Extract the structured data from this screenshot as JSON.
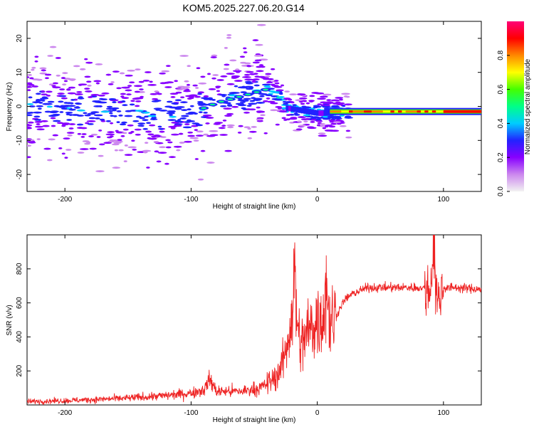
{
  "title": "KOM5.2025.227.06.20.G14",
  "chart_data": [
    {
      "type": "heatmap",
      "xlabel": "Height of straight line (km)",
      "ylabel": "Frequency (Hz)",
      "xlim": [
        -230,
        130
      ],
      "ylim": [
        -25,
        25
      ],
      "xticks": [
        -200,
        -100,
        0,
        100
      ],
      "yticks": [
        -20,
        -10,
        0,
        10,
        20
      ],
      "colorbar": {
        "label": "Normalized spectral amplitude",
        "range": [
          0,
          1
        ],
        "ticks": [
          0.0,
          0.2,
          0.4,
          0.6,
          0.8
        ],
        "colors": [
          "#f2f2f2",
          "#cc88ee",
          "#8800ff",
          "#2222ff",
          "#00ccff",
          "#00ff88",
          "#44ff00",
          "#ffff00",
          "#ff8800",
          "#ff0000",
          "#ff0077"
        ]
      },
      "ridge": {
        "x": [
          -230,
          -180,
          -130,
          -100,
          -80,
          -60,
          -40,
          -30,
          -25,
          0,
          50,
          100,
          130
        ],
        "frequency": [
          0.0,
          -1.0,
          -2.5,
          -2.0,
          1.0,
          3.0,
          5.0,
          3.0,
          -0.5,
          -2.0,
          -1.5,
          -1.5,
          -1.5
        ]
      },
      "stable_band": {
        "x_start": 10,
        "x_end": 130,
        "frequency": -1.5,
        "amplitude": 0.9
      }
    },
    {
      "type": "line",
      "xlabel": "Height of straight line (km)",
      "ylabel": "SNR (v/v)",
      "xlim": [
        -230,
        130
      ],
      "ylim": [
        0,
        1000
      ],
      "xticks": [
        -200,
        -100,
        0,
        100
      ],
      "yticks": [
        200,
        400,
        600,
        800
      ],
      "color": "#ee2222",
      "x": [
        -230,
        -200,
        -150,
        -120,
        -100,
        -90,
        -85,
        -80,
        -60,
        -45,
        -35,
        -30,
        -25,
        -20,
        -18,
        -15,
        -12,
        -10,
        -5,
        0,
        5,
        7,
        10,
        15,
        20,
        25,
        30,
        40,
        50,
        60,
        70,
        80,
        90,
        92,
        95,
        100,
        110,
        130
      ],
      "y": [
        20,
        25,
        40,
        55,
        70,
        90,
        150,
        80,
        80,
        100,
        150,
        200,
        300,
        550,
        750,
        400,
        350,
        400,
        450,
        500,
        530,
        750,
        480,
        520,
        600,
        640,
        660,
        690,
        690,
        690,
        690,
        690,
        680,
        990,
        600,
        690,
        690,
        680
      ]
    }
  ]
}
